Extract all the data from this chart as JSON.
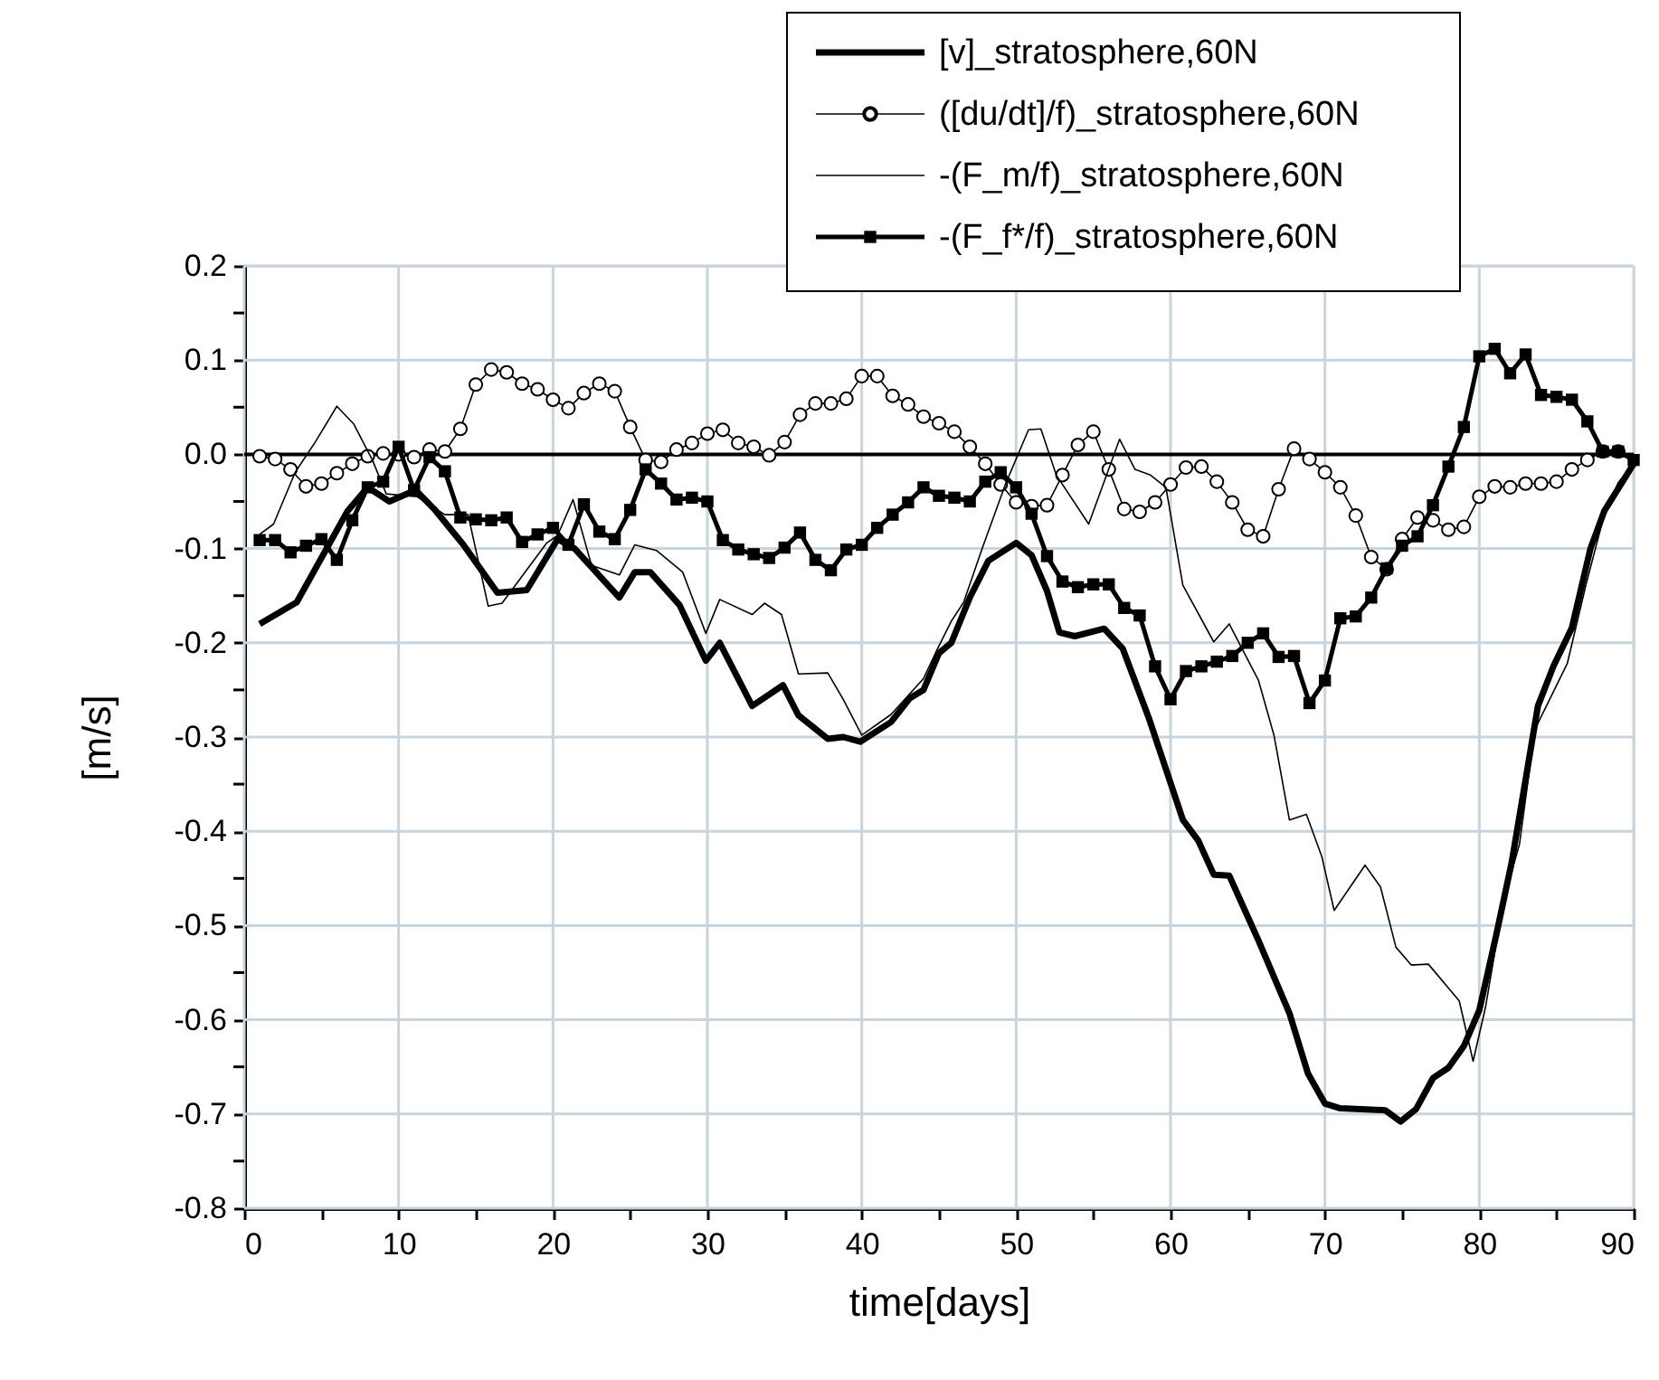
{
  "chart_data": {
    "type": "line",
    "xlabel": "time[days]",
    "ylabel": "[m/s]",
    "xlim": [
      0,
      90
    ],
    "ylim": [
      -0.8,
      0.2
    ],
    "xticks": [
      0,
      {
        "value": 5,
        "label": null
      },
      10,
      {
        "value": 15,
        "label": null
      },
      20,
      {
        "value": 25,
        "label": null
      },
      30,
      {
        "value": 35,
        "label": null
      },
      40,
      {
        "value": 45,
        "label": null
      },
      50,
      {
        "value": 55,
        "label": null
      },
      60,
      {
        "value": 65,
        "label": null
      },
      70,
      {
        "value": 75,
        "label": null
      },
      80,
      {
        "value": 85,
        "label": null
      },
      90
    ],
    "yticks": [
      0.2,
      {
        "value": 0.15,
        "label": null
      },
      0.1,
      {
        "value": 0.05,
        "label": null
      },
      {
        "value": 0,
        "label": "0.0"
      },
      {
        "value": -0.05,
        "label": null
      },
      -0.1,
      {
        "value": -0.15,
        "label": null
      },
      -0.2,
      {
        "value": -0.25,
        "label": null
      },
      -0.3,
      {
        "value": -0.35,
        "label": null
      },
      -0.4,
      {
        "value": -0.45,
        "label": null
      },
      -0.5,
      {
        "value": -0.55,
        "label": null
      },
      -0.6,
      {
        "value": -0.65,
        "label": null
      },
      -0.7,
      {
        "value": -0.75,
        "label": null
      },
      -0.8
    ],
    "grid": true,
    "legend": "top",
    "line_style": "solid",
    "ref_lines": [
      {
        "axis": "y",
        "value": 0,
        "color": "#000000"
      }
    ],
    "series": [
      {
        "name": "[v]_stratosphere,60N",
        "color": "#000000",
        "marker": "none",
        "x": [
          1,
          3.4,
          6.7,
          8,
          9.4,
          11.1,
          12.3,
          14.2,
          16.4,
          18.3,
          20.3,
          21.4,
          24.3,
          25.3,
          26.3,
          28.2,
          29.9,
          30.8,
          32.9,
          34.9,
          35.9,
          37.8,
          38.8,
          39.9,
          41.9,
          43.1,
          44,
          45,
          45.8,
          47,
          48.2,
          50,
          51,
          52,
          52.8,
          53.8,
          55.7,
          56.9,
          58.6,
          60.8,
          61.8,
          62.8,
          63.8,
          65.7,
          67.7,
          68.9,
          70,
          71,
          73.9,
          74.9,
          75.9,
          77,
          78,
          79,
          80,
          81.1,
          82.1,
          83.8,
          84.8,
          86,
          87.2,
          88.1,
          90
        ],
        "values": [
          -0.18,
          -0.157,
          -0.06,
          -0.035,
          -0.05,
          -0.038,
          -0.058,
          -0.096,
          -0.147,
          -0.144,
          -0.09,
          -0.1,
          -0.152,
          -0.125,
          -0.125,
          -0.16,
          -0.219,
          -0.2,
          -0.267,
          -0.245,
          -0.277,
          -0.302,
          -0.3,
          -0.305,
          -0.284,
          -0.259,
          -0.25,
          -0.211,
          -0.2,
          -0.152,
          -0.113,
          -0.094,
          -0.107,
          -0.145,
          -0.189,
          -0.193,
          -0.185,
          -0.206,
          -0.28,
          -0.388,
          -0.41,
          -0.446,
          -0.447,
          -0.516,
          -0.593,
          -0.657,
          -0.689,
          -0.694,
          -0.696,
          -0.708,
          -0.695,
          -0.662,
          -0.651,
          -0.628,
          -0.59,
          -0.51,
          -0.433,
          -0.267,
          -0.225,
          -0.184,
          -0.1,
          -0.06,
          -0.01
        ]
      },
      {
        "name": "([du/dt]/f)_stratosphere,60N",
        "color": "#000000",
        "marker": "circle",
        "x": [
          1,
          2,
          3,
          4,
          5,
          6,
          7,
          8,
          9,
          10,
          11,
          12,
          13,
          14,
          15,
          16,
          17,
          18,
          19,
          20,
          21,
          22,
          23,
          24,
          25,
          26,
          27,
          28,
          29,
          30,
          31,
          32,
          33,
          34,
          35,
          36,
          37,
          38,
          39,
          40,
          41,
          42,
          43,
          44,
          45,
          46,
          47,
          48,
          49,
          50,
          51,
          52,
          53,
          54,
          55,
          56,
          57,
          58,
          59,
          60,
          61,
          62,
          63,
          64,
          65,
          66,
          67,
          68,
          69,
          70,
          71,
          72,
          73,
          74,
          75,
          76,
          77,
          78,
          79,
          80,
          81,
          82,
          83,
          84,
          85,
          86,
          87,
          88,
          89
        ],
        "values": [
          -0.002,
          -0.005,
          -0.016,
          -0.034,
          -0.031,
          -0.02,
          -0.01,
          -0.002,
          0.001,
          0,
          -0.003,
          0.005,
          0.003,
          0.027,
          0.074,
          0.09,
          0.087,
          0.075,
          0.069,
          0.058,
          0.049,
          0.065,
          0.075,
          0.067,
          0.029,
          -0.006,
          -0.008,
          0.005,
          0.012,
          0.022,
          0.026,
          0.012,
          0.008,
          -0.001,
          0.013,
          0.042,
          0.054,
          0.054,
          0.059,
          0.083,
          0.083,
          0.062,
          0.053,
          0.04,
          0.033,
          0.024,
          0.008,
          -0.01,
          -0.032,
          -0.051,
          -0.055,
          -0.054,
          -0.022,
          0.01,
          0.024,
          -0.016,
          -0.058,
          -0.061,
          -0.051,
          -0.032,
          -0.014,
          -0.013,
          -0.029,
          -0.051,
          -0.08,
          -0.087,
          -0.037,
          0.006,
          -0.005,
          -0.019,
          -0.035,
          -0.065,
          -0.109,
          -0.122,
          -0.09,
          -0.067,
          -0.07,
          -0.08,
          -0.077,
          -0.045,
          -0.034,
          -0.035,
          -0.031,
          -0.031,
          -0.029,
          -0.016,
          -0.006,
          0.003,
          0.003
        ]
      },
      {
        "name": "-(F_m/f)_stratosphere,60N",
        "color": "#000000",
        "marker": "none",
        "x": [
          1,
          1.9,
          3.3,
          4.6,
          6,
          7.1,
          8.3,
          9.2,
          11.2,
          13,
          14.5,
          15.8,
          16.7,
          19.6,
          20.3,
          21.3,
          22.5,
          24.3,
          25.3,
          26.7,
          28.4,
          29.9,
          30.8,
          32.9,
          33.7,
          34.8,
          35.9,
          37.8,
          38.8,
          40,
          41.9,
          44,
          44.8,
          45.8,
          46.6,
          47.8,
          49.3,
          50.8,
          51.6,
          52.6,
          54.7,
          56.7,
          57.7,
          58.7,
          59.7,
          60.8,
          62.8,
          63.8,
          65.7,
          66.7,
          67.7,
          68.8,
          69.8,
          70.6,
          72.6,
          73.6,
          74.6,
          75.6,
          76.7,
          78.7,
          79.6,
          80.4,
          81.6,
          82.6,
          83.6,
          85.7,
          86.9,
          88,
          89,
          90
        ],
        "values": [
          -0.085,
          -0.074,
          -0.019,
          0.013,
          0.051,
          0.032,
          -0.006,
          -0.042,
          -0.045,
          -0.064,
          -0.064,
          -0.161,
          -0.158,
          -0.094,
          -0.086,
          -0.048,
          -0.118,
          -0.128,
          -0.096,
          -0.102,
          -0.125,
          -0.19,
          -0.154,
          -0.17,
          -0.158,
          -0.17,
          -0.233,
          -0.232,
          -0.26,
          -0.298,
          -0.276,
          -0.238,
          -0.21,
          -0.177,
          -0.157,
          -0.1,
          -0.032,
          0.026,
          0.027,
          -0.022,
          -0.074,
          0.016,
          -0.016,
          -0.022,
          -0.035,
          -0.139,
          -0.199,
          -0.18,
          -0.24,
          -0.298,
          -0.388,
          -0.382,
          -0.427,
          -0.484,
          -0.436,
          -0.459,
          -0.523,
          -0.542,
          -0.541,
          -0.58,
          -0.644,
          -0.587,
          -0.471,
          -0.414,
          -0.292,
          -0.222,
          -0.139,
          -0.07,
          -0.03,
          -0.01
        ]
      },
      {
        "name": "-(F_f*/f)_stratosphere,60N",
        "color": "#000000",
        "marker": "square",
        "x": [
          1,
          2,
          3,
          4,
          5,
          6,
          7,
          8,
          9,
          10,
          11,
          12,
          13,
          14,
          15,
          16,
          17,
          18,
          19,
          20,
          21,
          22,
          23,
          24,
          25,
          26,
          27,
          28,
          29,
          30,
          31,
          32,
          33,
          34,
          35,
          36,
          37,
          38,
          39,
          40,
          41,
          42,
          43,
          44,
          45,
          46,
          47,
          48,
          49,
          50,
          51,
          52,
          53,
          54,
          55,
          56,
          57,
          58,
          59,
          60,
          61,
          62,
          63,
          64,
          65,
          66,
          67,
          68,
          69,
          70,
          71,
          72,
          73,
          74,
          75,
          76,
          77,
          78,
          79,
          80,
          81,
          82,
          83,
          84,
          85,
          86,
          87,
          88,
          89,
          90
        ],
        "values": [
          -0.091,
          -0.091,
          -0.104,
          -0.097,
          -0.09,
          -0.112,
          -0.07,
          -0.035,
          -0.029,
          0.008,
          -0.038,
          -0.003,
          -0.018,
          -0.067,
          -0.069,
          -0.07,
          -0.067,
          -0.093,
          -0.085,
          -0.078,
          -0.096,
          -0.053,
          -0.082,
          -0.09,
          -0.059,
          -0.016,
          -0.031,
          -0.048,
          -0.046,
          -0.05,
          -0.091,
          -0.101,
          -0.106,
          -0.11,
          -0.099,
          -0.083,
          -0.112,
          -0.123,
          -0.101,
          -0.096,
          -0.078,
          -0.064,
          -0.051,
          -0.035,
          -0.044,
          -0.046,
          -0.05,
          -0.029,
          -0.019,
          -0.035,
          -0.063,
          -0.108,
          -0.135,
          -0.141,
          -0.138,
          -0.138,
          -0.163,
          -0.171,
          -0.225,
          -0.26,
          -0.23,
          -0.225,
          -0.22,
          -0.214,
          -0.2,
          -0.19,
          -0.215,
          -0.214,
          -0.264,
          -0.24,
          -0.174,
          -0.172,
          -0.152,
          -0.121,
          -0.097,
          -0.087,
          -0.054,
          -0.013,
          0.029,
          0.104,
          0.112,
          0.086,
          0.106,
          0.063,
          0.061,
          0.058,
          0.035,
          0.003,
          0.003,
          -0.006
        ]
      }
    ]
  }
}
